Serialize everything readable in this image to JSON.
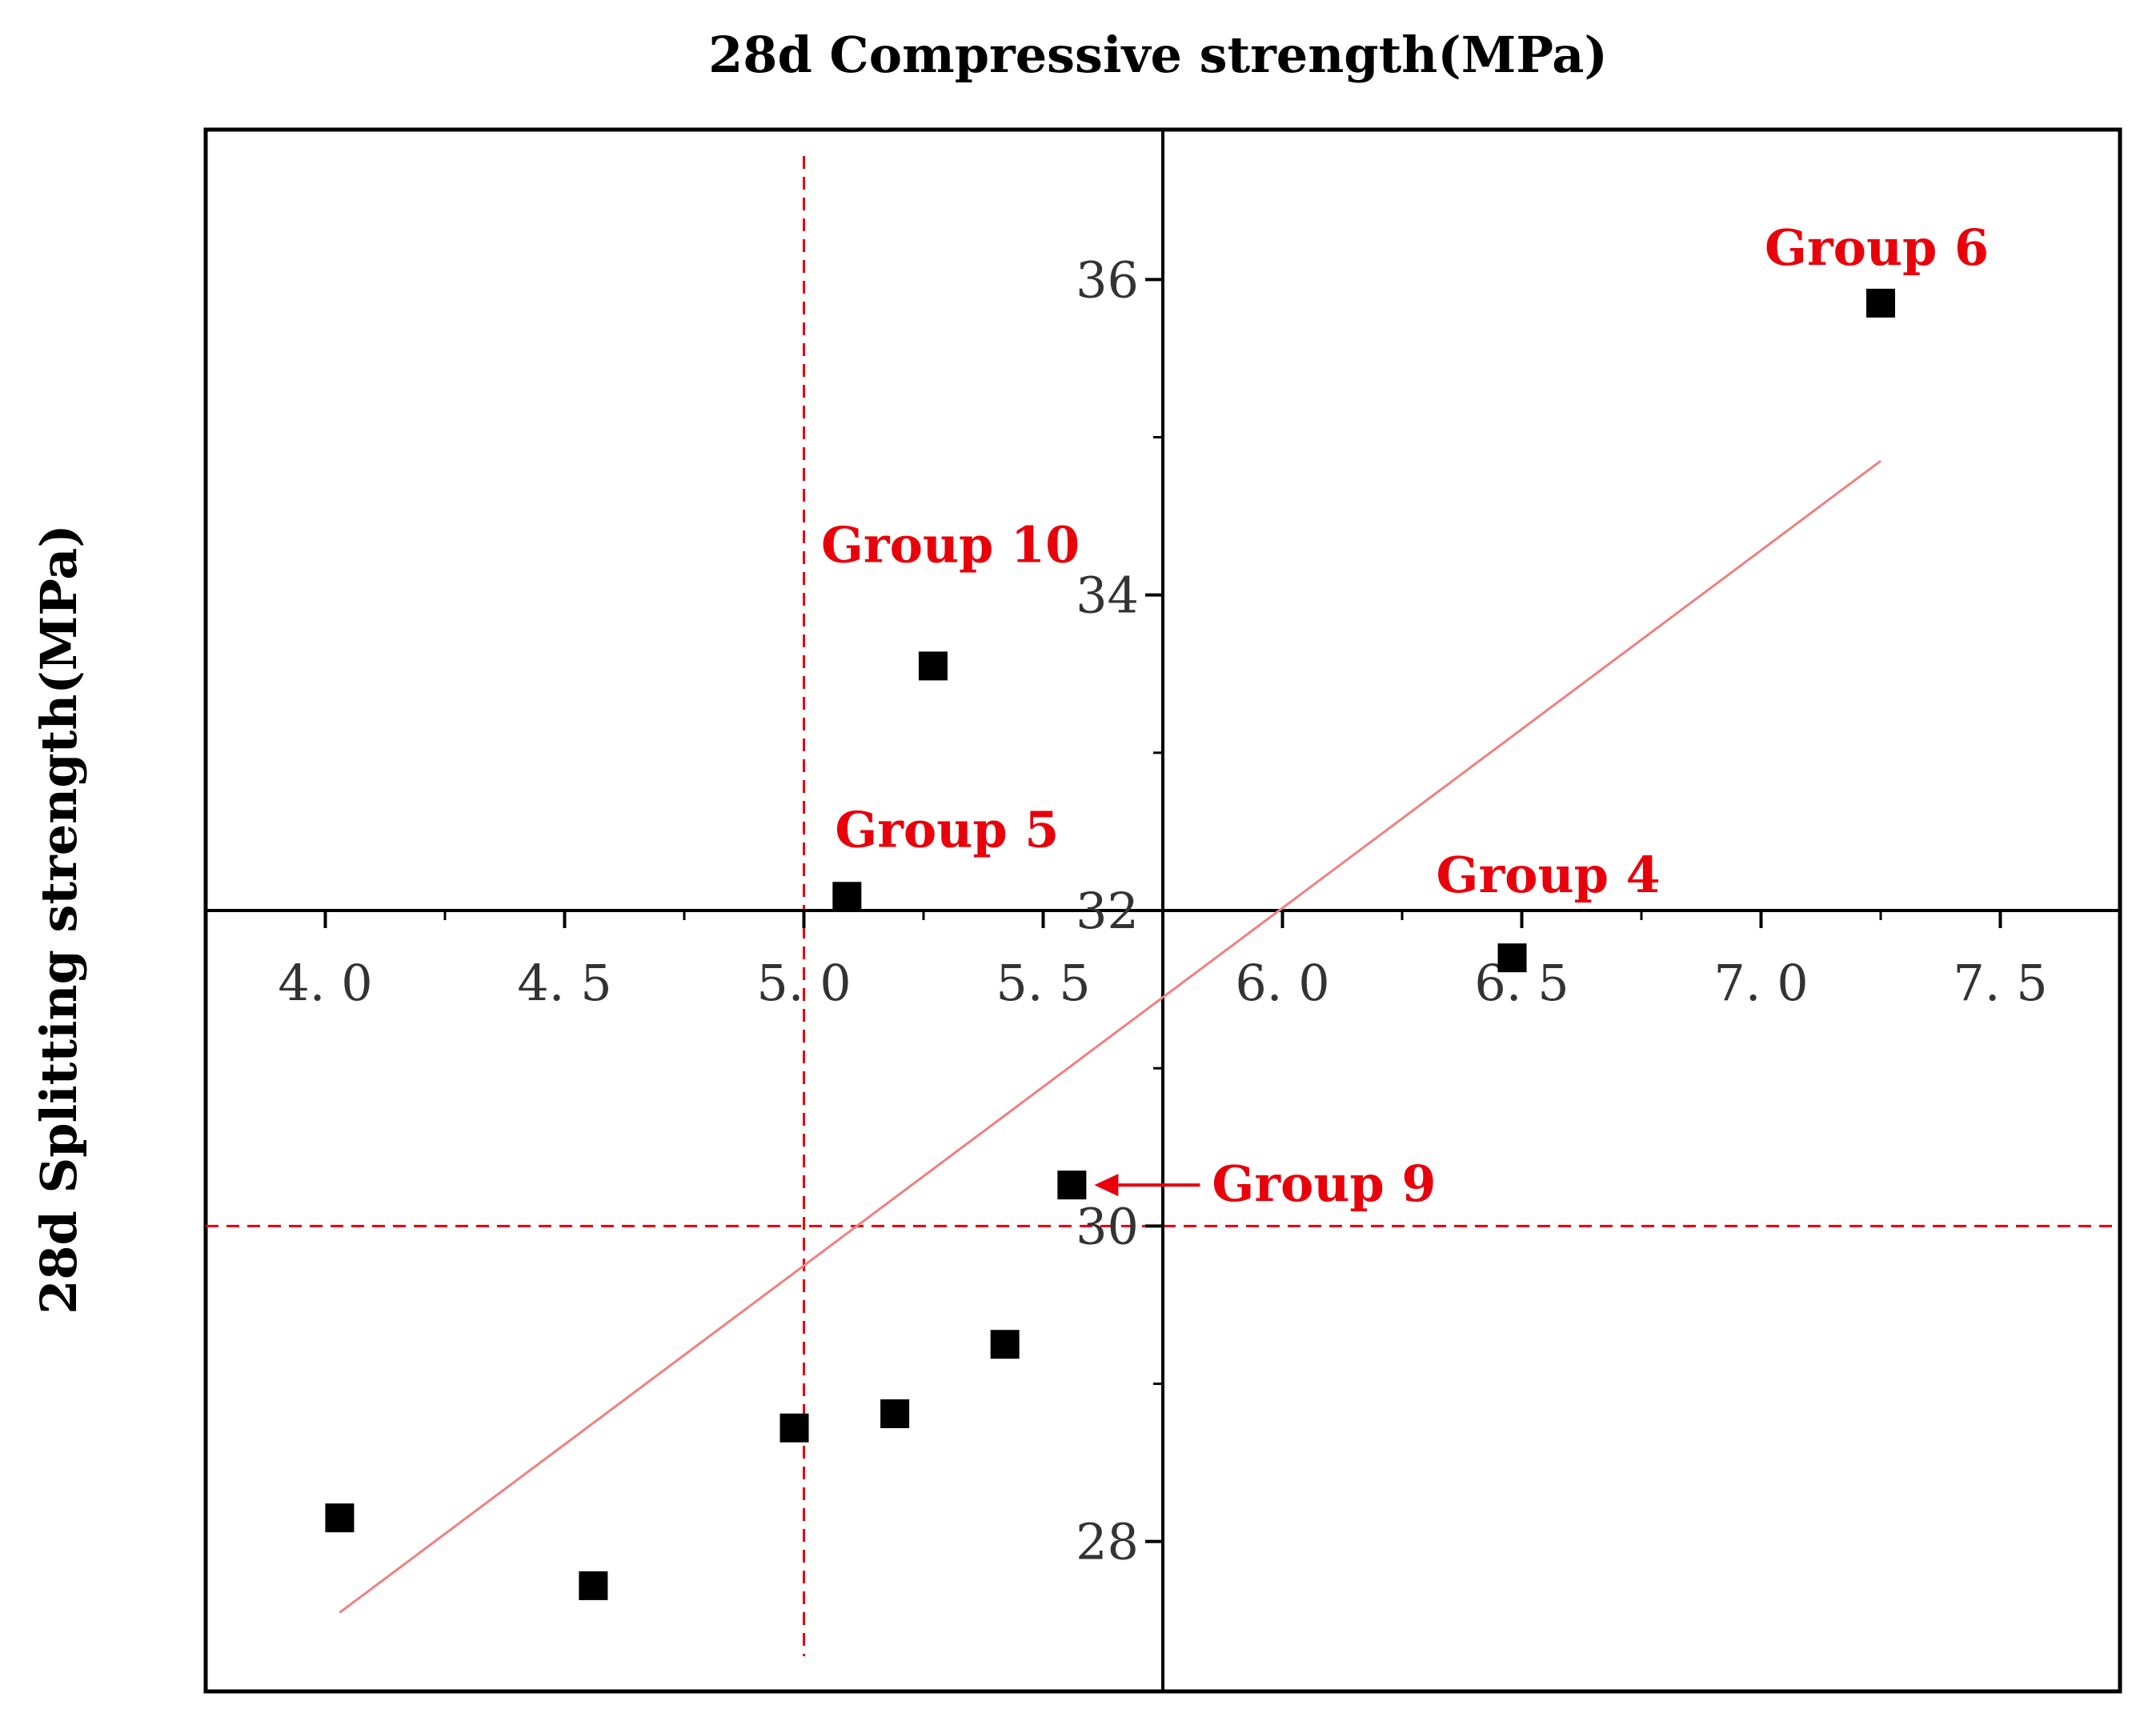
{
  "chart_data": {
    "type": "scatter",
    "title": "28d  Compressive  strength(MPa)",
    "xlabel": "28d  Compressive  strength(MPa)",
    "ylabel": "28d  Splitting strength(MPa)",
    "xlim": [
      3.75,
      7.75
    ],
    "ylim": [
      27.05,
      36.95
    ],
    "x_ticks": [
      4.0,
      4.5,
      5.0,
      5.5,
      6.0,
      6.5,
      7.0,
      7.5
    ],
    "x_tick_labels": [
      "4. 0",
      "4. 5",
      "5. 0",
      "5. 5",
      "6. 0",
      "6. 5",
      "7. 0",
      "7. 5"
    ],
    "y_ticks": [
      28,
      30,
      32,
      34,
      36
    ],
    "y_tick_labels": [
      "28",
      "30",
      "32",
      "34",
      "36"
    ],
    "axis_cross": {
      "x": 5.75,
      "y": 32
    },
    "points": [
      {
        "x": 4.03,
        "y": 28.15
      },
      {
        "x": 4.56,
        "y": 27.72
      },
      {
        "x": 4.98,
        "y": 28.72
      },
      {
        "x": 5.09,
        "y": 32.09
      },
      {
        "x": 5.19,
        "y": 28.81
      },
      {
        "x": 5.27,
        "y": 33.55
      },
      {
        "x": 5.42,
        "y": 29.25
      },
      {
        "x": 5.56,
        "y": 30.26
      },
      {
        "x": 6.48,
        "y": 31.7
      },
      {
        "x": 7.25,
        "y": 35.85
      }
    ],
    "fit_line": {
      "x": [
        4.03,
        7.25
      ],
      "y": [
        27.55,
        34.85
      ]
    },
    "reference_lines": {
      "x": 5.0,
      "y": 30.0
    },
    "colors": {
      "points": "#000000",
      "annotation": "#e8000b",
      "fit": "#f08080",
      "axes": "#000000"
    },
    "annotations": [
      {
        "label": "Group 6",
        "x": 7.25,
        "y": 35.85
      },
      {
        "label": "Group 10",
        "x": 5.27,
        "y": 33.55
      },
      {
        "label": "Group 5",
        "x": 5.09,
        "y": 32.09
      },
      {
        "label": "Group 4",
        "x": 6.48,
        "y": 31.7
      },
      {
        "label": "Group 9",
        "x": 5.56,
        "y": 30.26
      }
    ]
  }
}
